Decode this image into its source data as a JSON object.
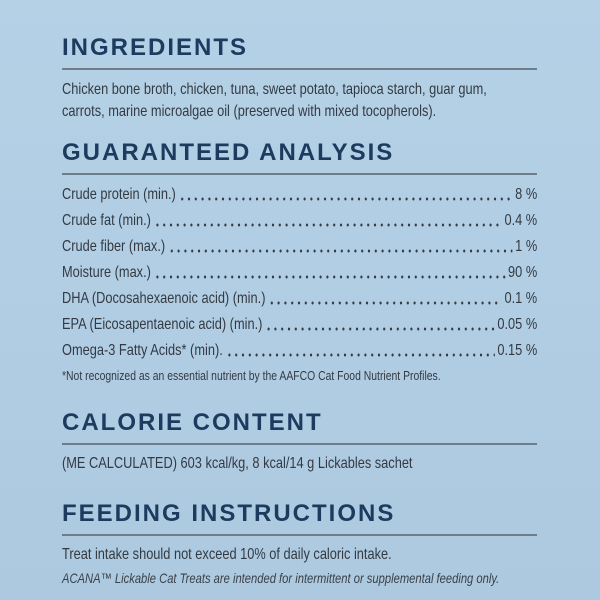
{
  "theme": {
    "background": "#b1cde3",
    "heading_color": "#1c3b5e",
    "rule_color": "#6f7d89",
    "text_color": "#333a42"
  },
  "ingredients": {
    "title": "INGREDIENTS",
    "body": "Chicken bone broth, chicken, tuna, sweet potato, tapioca starch, guar gum, carrots, marine microalgae oil (preserved with mixed tocopherols)."
  },
  "guaranteed_analysis": {
    "title": "GUARANTEED ANALYSIS",
    "rows": [
      {
        "label": "Crude protein (min.)",
        "value": "8 %"
      },
      {
        "label": "Crude fat (min.)",
        "value": "0.4 %"
      },
      {
        "label": "Crude fiber (max.)",
        "value": "1 %"
      },
      {
        "label": "Moisture (max.)",
        "value": "90 %"
      },
      {
        "label": "DHA (Docosahexaenoic acid) (min.)",
        "value": "0.1 %"
      },
      {
        "label": "EPA (Eicosapentaenoic acid) (min.)",
        "value": "0.05 %"
      },
      {
        "label": "Omega-3 Fatty Acids* (min).",
        "value": "0.15 %"
      }
    ],
    "footnote": "*Not recognized as an essential nutrient by the AAFCO Cat Food Nutrient Profiles."
  },
  "calorie_content": {
    "title": "CALORIE CONTENT",
    "body": "(ME CALCULATED) 603 kcal/kg, 8 kcal/14 g Lickables sachet"
  },
  "feeding_instructions": {
    "title": "FEEDING INSTRUCTIONS",
    "body": "Treat intake should not exceed 10% of daily caloric intake.",
    "note": "ACANA™ Lickable Cat Treats are intended for intermittent or supplemental feeding only."
  }
}
